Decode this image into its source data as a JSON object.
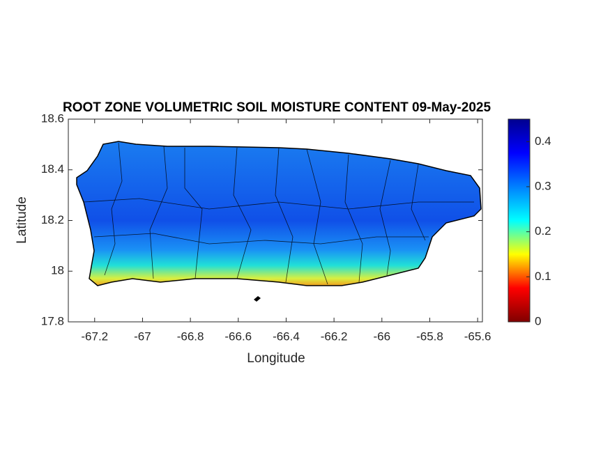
{
  "chart_data": {
    "type": "map",
    "title": "ROOT ZONE VOLUMETRIC SOIL MOISTURE CONTENT 09-May-2025",
    "x_label": "Longitude",
    "y_label": "Latitude",
    "xlim": [
      -67.31,
      -65.58
    ],
    "xticks": [
      -67.2,
      -67,
      -66.8,
      -66.6,
      -66.4,
      -66.2,
      -66,
      -65.8,
      -65.6
    ],
    "ylim": [
      17.8,
      18.6
    ],
    "yticks": [
      17.8,
      18,
      18.2,
      18.4,
      18.6
    ],
    "colorbar": {
      "clim": [
        0,
        0.45
      ],
      "ticks": [
        0,
        0.1,
        0.2,
        0.3,
        0.4
      ],
      "colormap": [
        "#800000",
        "#ff0000",
        "#ffff00",
        "#00ffff",
        "#0080ff",
        "#0000ff",
        "#00008f"
      ]
    }
  }
}
